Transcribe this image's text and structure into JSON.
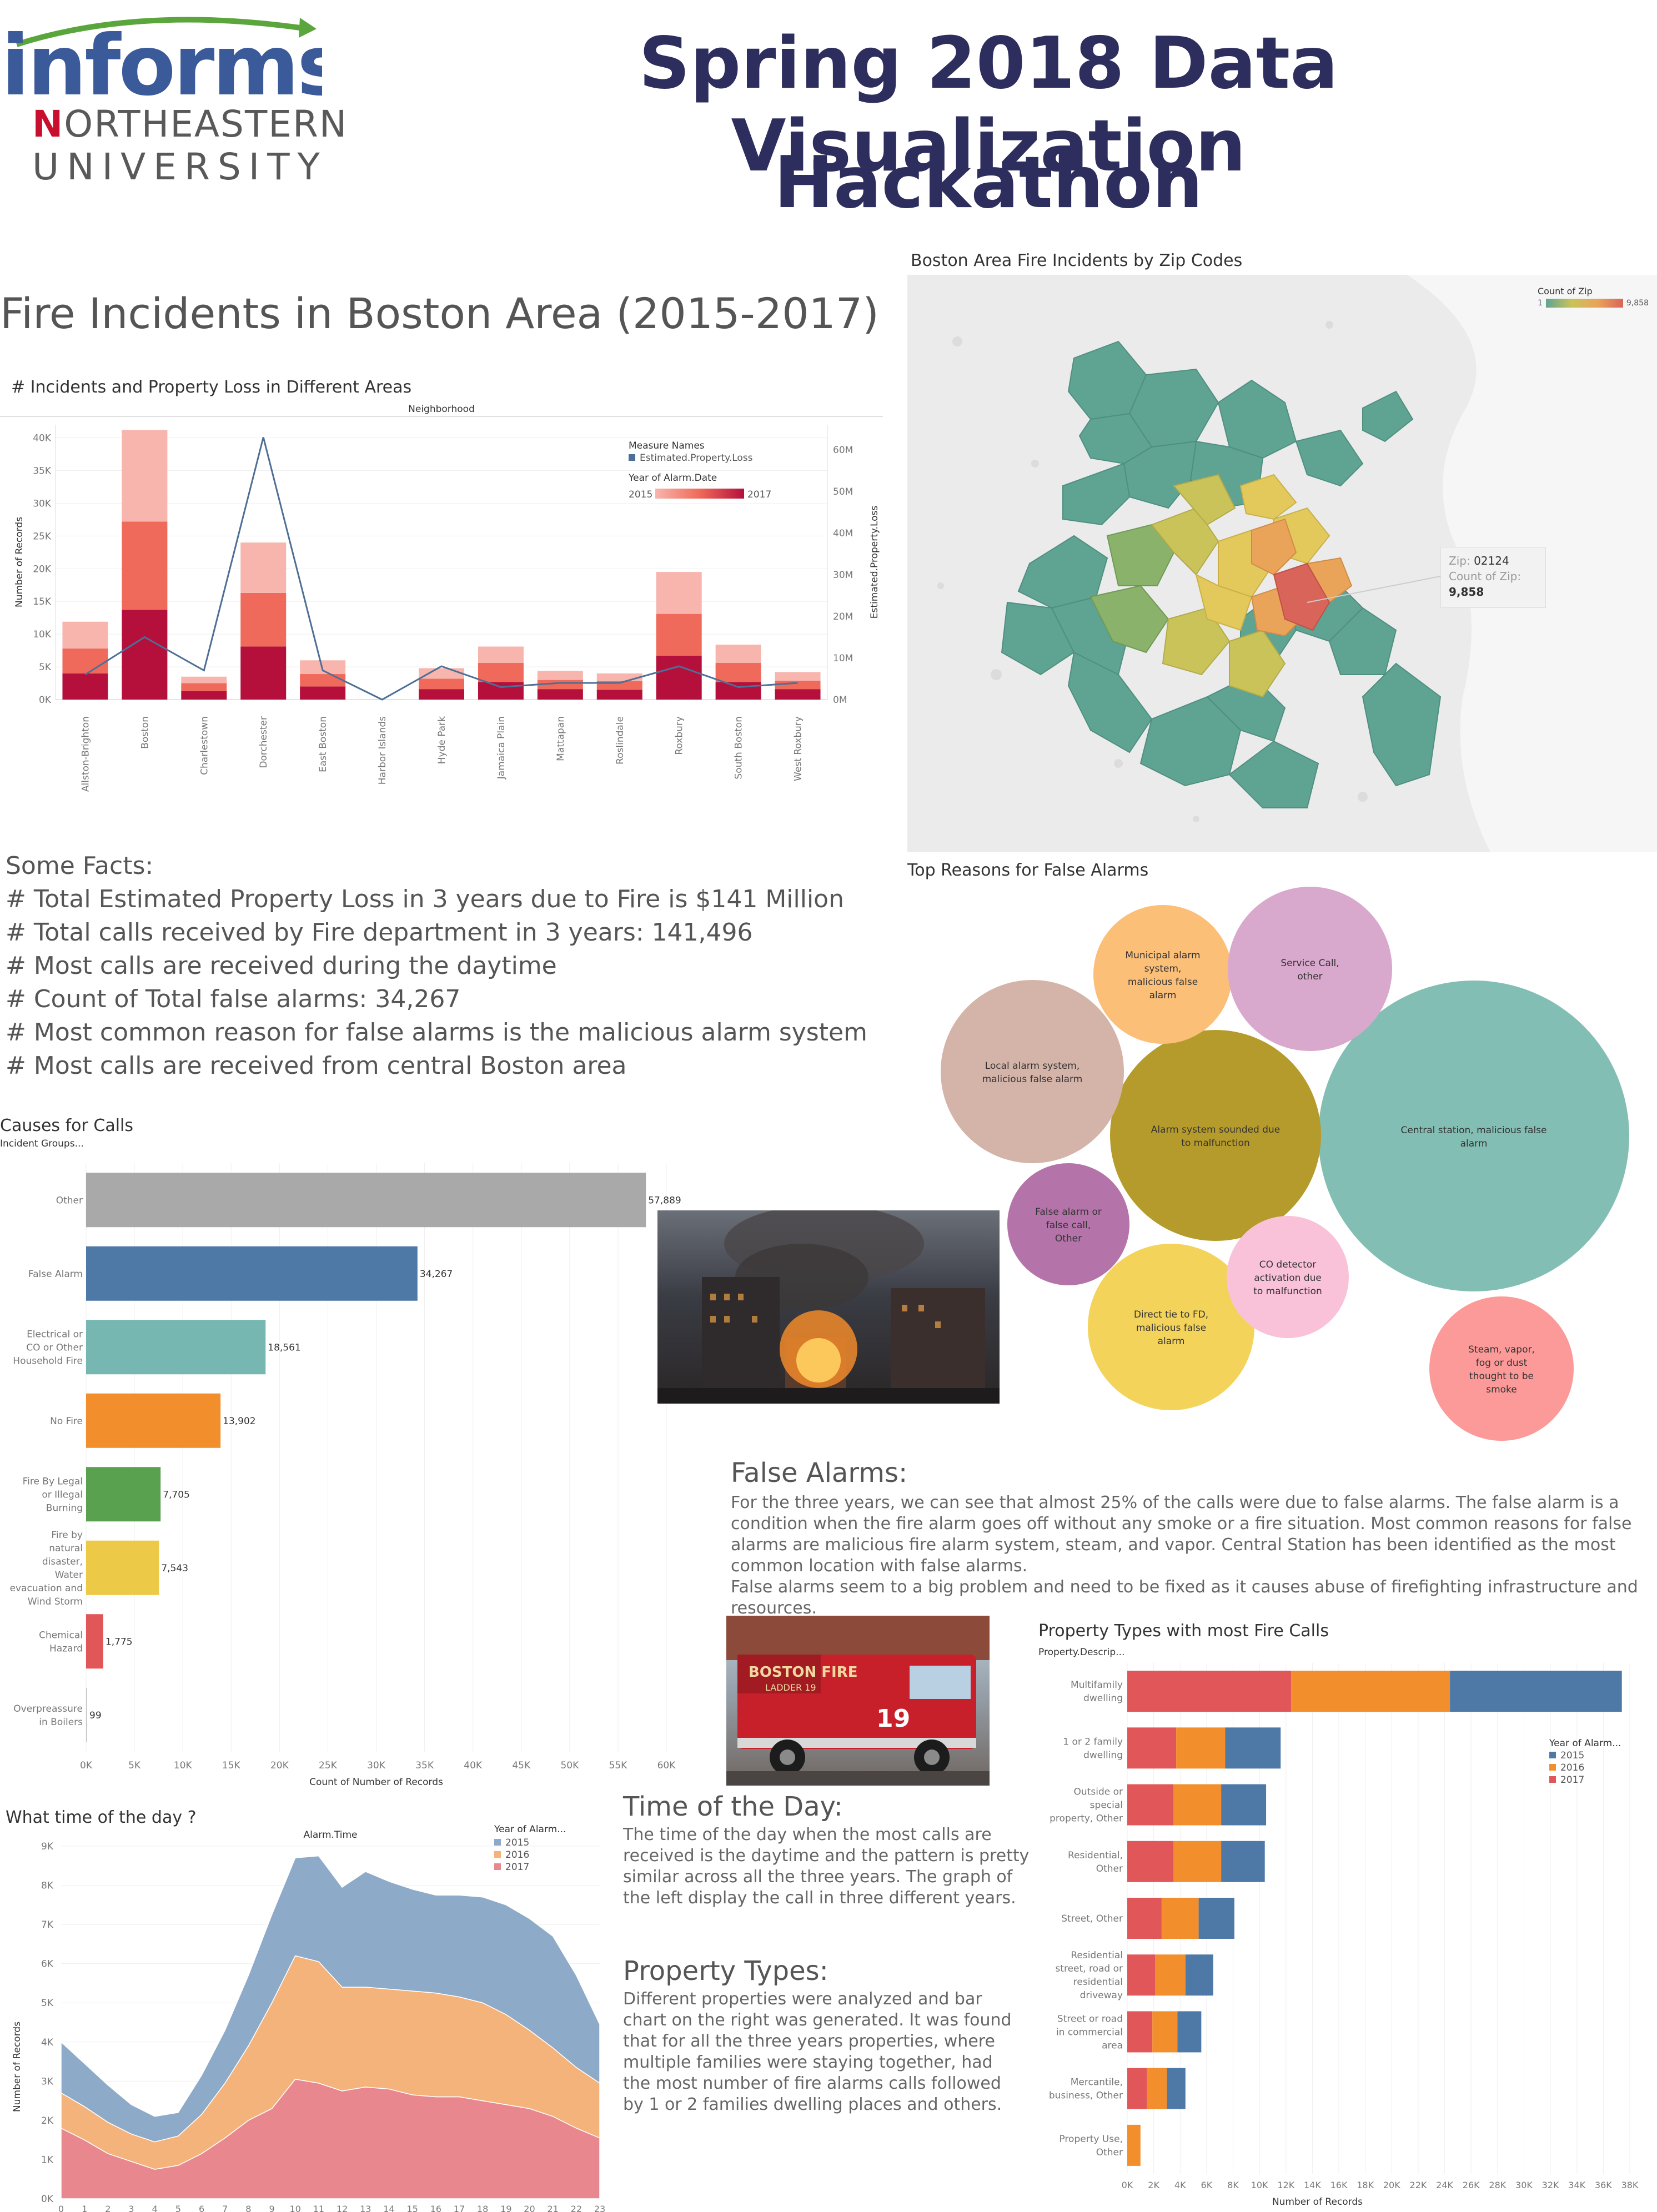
{
  "header": {
    "logo_top": "informs",
    "logo_uni_1": "ORTHEASTERN",
    "logo_uni_n": "N",
    "logo_uni_2": "UNIVERSITY",
    "title_line1": "Spring 2018 Data Visualization",
    "title_line2": "Hackathon"
  },
  "main_title": "Fire Incidents in Boston Area  (2015-2017)",
  "facts": {
    "heading": "Some Facts:",
    "items": [
      "# Total Estimated Property Loss in 3 years due to Fire is $141 Million",
      "# Total calls received by Fire department in 3 years: 141,496",
      "# Most calls are received during the daytime",
      "# Count of Total false alarms:  34,267",
      "# Most common reason for false alarms is the malicious alarm system",
      "# Most calls are received from central Boston area"
    ]
  },
  "false_alarms_text": {
    "heading": "False Alarms:",
    "para1": "For the three years, we can see that almost 25% of the calls were due to false alarms. The false alarm is a condition when the fire alarm goes off without any smoke or a fire situation. Most common reasons for false alarms are malicious fire alarm system, steam, and vapor. Central Station has been identified as the most common location with false alarms.",
    "para2": "False alarms seem to a big problem and need to be fixed as it causes abuse of firefighting infrastructure and resources."
  },
  "time_text": {
    "heading": "Time of the Day:",
    "body": "The time of the day when the most calls are received is the daytime and the pattern is pretty similar across all the three years. The graph of the left display the call in three different years."
  },
  "property_text": {
    "heading": "Property Types:",
    "body": "Different properties were analyzed and bar chart on the right was generated. It was found that for all the three years properties, where multiple families were staying together, had the most number of fire alarms calls followed by 1 or 2 families dwelling places and others."
  },
  "photo_labels": {
    "truck_text": "BOSTON FIRE",
    "truck_ladder": "LADDER 19",
    "truck_number": "19"
  },
  "colors": {
    "title": "#2e2e5e",
    "informs_blue": "#3a5a9a",
    "informs_green": "#5aa63c",
    "neu_red": "#c8102e",
    "y2015": "#f7b5ae",
    "y2016": "#ef6a5a",
    "y2017": "#b5103c",
    "loss_line": "#4e6f95"
  },
  "chart_data": [
    {
      "id": "neighborhood",
      "type": "bar",
      "title": "# Incidents and Property Loss in Different Areas",
      "header": "Neighborhood",
      "ylabel": "Number of Records",
      "y2label": "Estimated.Property.Loss",
      "ylim": [
        0,
        42000
      ],
      "y2lim": [
        0,
        66000000
      ],
      "yticks": [
        "0K",
        "5K",
        "10K",
        "15K",
        "20K",
        "25K",
        "30K",
        "35K",
        "40K"
      ],
      "y2ticks": [
        "0M",
        "10M",
        "20M",
        "30M",
        "40M",
        "50M",
        "60M"
      ],
      "legend_measure_title": "Measure Names",
      "legend_measure_item": "Estimated.Property.Loss",
      "legend_year_title": "Year of Alarm.Date",
      "legend_year_min": "2015",
      "legend_year_max": "2017",
      "categories": [
        "Allston-Brighton",
        "Boston",
        "Charlestown",
        "Dorchester",
        "East Boston",
        "Harbor Islands",
        "Hyde Park",
        "Jamaica Plain",
        "Mattapan",
        "Roslindale",
        "Roxbury",
        "South Boston",
        "West Roxbury"
      ],
      "series": [
        {
          "name": "2017",
          "values": [
            4000,
            13700,
            1300,
            8100,
            2000,
            0,
            1600,
            2700,
            1600,
            1500,
            6700,
            2700,
            1600
          ]
        },
        {
          "name": "2016",
          "values": [
            3800,
            13500,
            1200,
            8200,
            1900,
            0,
            1600,
            2900,
            1400,
            1300,
            6400,
            2900,
            1300
          ]
        },
        {
          "name": "2015",
          "values": [
            4100,
            14000,
            1000,
            7700,
            2100,
            50,
            1600,
            2500,
            1400,
            1200,
            6400,
            2800,
            1300
          ]
        }
      ],
      "property_loss": [
        6000000,
        15000000,
        7000000,
        63000000,
        7000000,
        0,
        8000000,
        3000000,
        4000000,
        4000000,
        8000000,
        3000000,
        4000000
      ]
    },
    {
      "id": "zipmap",
      "type": "heatmap",
      "title": "Boston Area Fire Incidents by Zip Codes",
      "legend_title": "Count of Zip",
      "legend_min": "1",
      "legend_max": "9,858",
      "tooltip_zip_label": "Zip:",
      "tooltip_zip": "02124",
      "tooltip_count_label": "Count of Zip:",
      "tooltip_count": "9,858"
    },
    {
      "id": "false_alarm_bubbles",
      "type": "scatter",
      "title": "Top Reasons for False Alarms",
      "bubbles": [
        {
          "label": "Central station, malicious false alarm",
          "color": "#83beb4"
        },
        {
          "label": "Alarm system sounded due to malfunction",
          "color": "#b59b2c"
        },
        {
          "label": "Local alarm system, malicious false alarm",
          "color": "#d4b3a8"
        },
        {
          "label": "Direct tie to FD, malicious false alarm",
          "color": "#f3d35a"
        },
        {
          "label": "Municipal alarm system, malicious false alarm",
          "color": "#fbbf78"
        },
        {
          "label": "Service Call, other",
          "color": "#d9a8cd"
        },
        {
          "label": "Steam, vapor, fog or dust thought to be smoke",
          "color": "#fb9a98"
        },
        {
          "label": "False alarm or false call, Other",
          "color": "#b473a9"
        },
        {
          "label": "CO detector activation due to malfunction",
          "color": "#f9c2d8"
        }
      ]
    },
    {
      "id": "causes",
      "type": "bar",
      "title": "Causes for Calls",
      "header": "Incident Groups...",
      "xlabel": "Count of Number of Records",
      "xlim": [
        0,
        60000
      ],
      "xticks": [
        "0K",
        "5K",
        "10K",
        "15K",
        "20K",
        "25K",
        "30K",
        "35K",
        "40K",
        "45K",
        "50K",
        "55K",
        "60K"
      ],
      "categories": [
        "Other",
        "False Alarm",
        "Electrical or CO or Other Household Fire",
        "No Fire",
        "Fire By Legal or Illegal Burning",
        "Fire by natural disaster, Water evacuation and Wind Storm",
        "Chemical Hazard",
        "Overpreassure in Boilers"
      ],
      "values": [
        57889,
        34267,
        18561,
        13902,
        7705,
        7543,
        1775,
        99
      ],
      "value_labels": [
        "57,889",
        "34,267",
        "18,561",
        "13,902",
        "7,705",
        "7,543",
        "1,775",
        "99"
      ],
      "colors": [
        "#a9a9a9",
        "#4e79a7",
        "#76b7b2",
        "#f28e2b",
        "#59a14f",
        "#edc948",
        "#e15759",
        "#cccccc"
      ]
    },
    {
      "id": "time_of_day",
      "type": "area",
      "title": "What time of the day ?",
      "header": "Alarm.Time",
      "ylabel": "Number of Records",
      "ylim": [
        0,
        9000
      ],
      "yticks": [
        "0K",
        "1K",
        "2K",
        "3K",
        "4K",
        "5K",
        "6K",
        "7K",
        "8K",
        "9K"
      ],
      "legend_title": "Year of Alarm...",
      "x": [
        0,
        1,
        2,
        3,
        4,
        5,
        6,
        7,
        8,
        9,
        10,
        11,
        12,
        13,
        14,
        15,
        16,
        17,
        18,
        19,
        20,
        21,
        22,
        23
      ],
      "xticks": [
        "0",
        "1",
        "2",
        "3",
        "4",
        "5",
        "6",
        "7",
        "8",
        "9",
        "10",
        "11",
        "12",
        "13",
        "14",
        "15",
        "16",
        "17",
        "18",
        "19",
        "20",
        "21",
        "22",
        "23"
      ],
      "series": [
        {
          "name": "2017",
          "color": "#e9878f",
          "values": [
            1800,
            1500,
            1150,
            950,
            750,
            850,
            1150,
            1550,
            2000,
            2300,
            3050,
            2950,
            2750,
            2850,
            2800,
            2650,
            2600,
            2600,
            2500,
            2400,
            2300,
            2100,
            1800,
            1550
          ]
        },
        {
          "name": "2016",
          "color": "#f4b37a",
          "values": [
            900,
            850,
            800,
            700,
            700,
            750,
            1000,
            1400,
            1900,
            2700,
            3150,
            3100,
            2650,
            2550,
            2550,
            2650,
            2650,
            2550,
            2500,
            2300,
            2000,
            1750,
            1550,
            1400
          ]
        },
        {
          "name": "2015",
          "color": "#8daac8",
          "values": [
            1300,
            1100,
            950,
            750,
            650,
            600,
            1000,
            1350,
            1800,
            2250,
            2500,
            2700,
            2550,
            2950,
            2750,
            2600,
            2500,
            2600,
            2700,
            2800,
            2850,
            2850,
            2350,
            1500
          ]
        }
      ]
    },
    {
      "id": "property_types",
      "type": "bar",
      "title": "Property Types with most Fire Calls",
      "header": "Property.Descrip...",
      "xlabel": "Number of Records",
      "xlim": [
        0,
        38000
      ],
      "xticks": [
        "0K",
        "2K",
        "4K",
        "6K",
        "8K",
        "10K",
        "12K",
        "14K",
        "16K",
        "18K",
        "20K",
        "22K",
        "24K",
        "26K",
        "28K",
        "30K",
        "32K",
        "34K",
        "36K",
        "38K"
      ],
      "legend_title": "Year of Alarm...",
      "categories": [
        "Multifamily dwelling",
        "1 or 2 family dwelling",
        "Outside or special property, Other",
        "Residential, Other",
        "Street, Other",
        "Residential street, road or residential driveway",
        "Street or road in commercial area",
        "Mercantile, business, Other",
        "Property Use, Other"
      ],
      "series": [
        {
          "name": "2017",
          "color": "#e15759",
          "values": [
            12400,
            3700,
            3500,
            3500,
            2600,
            2100,
            1900,
            1500,
            0
          ]
        },
        {
          "name": "2016",
          "color": "#f28e2b",
          "values": [
            12000,
            3700,
            3600,
            3600,
            2800,
            2300,
            1900,
            1500,
            1000
          ]
        },
        {
          "name": "2015",
          "color": "#4e79a7",
          "values": [
            13000,
            4200,
            3400,
            3300,
            2700,
            2100,
            1800,
            1400,
            0
          ]
        }
      ]
    }
  ]
}
